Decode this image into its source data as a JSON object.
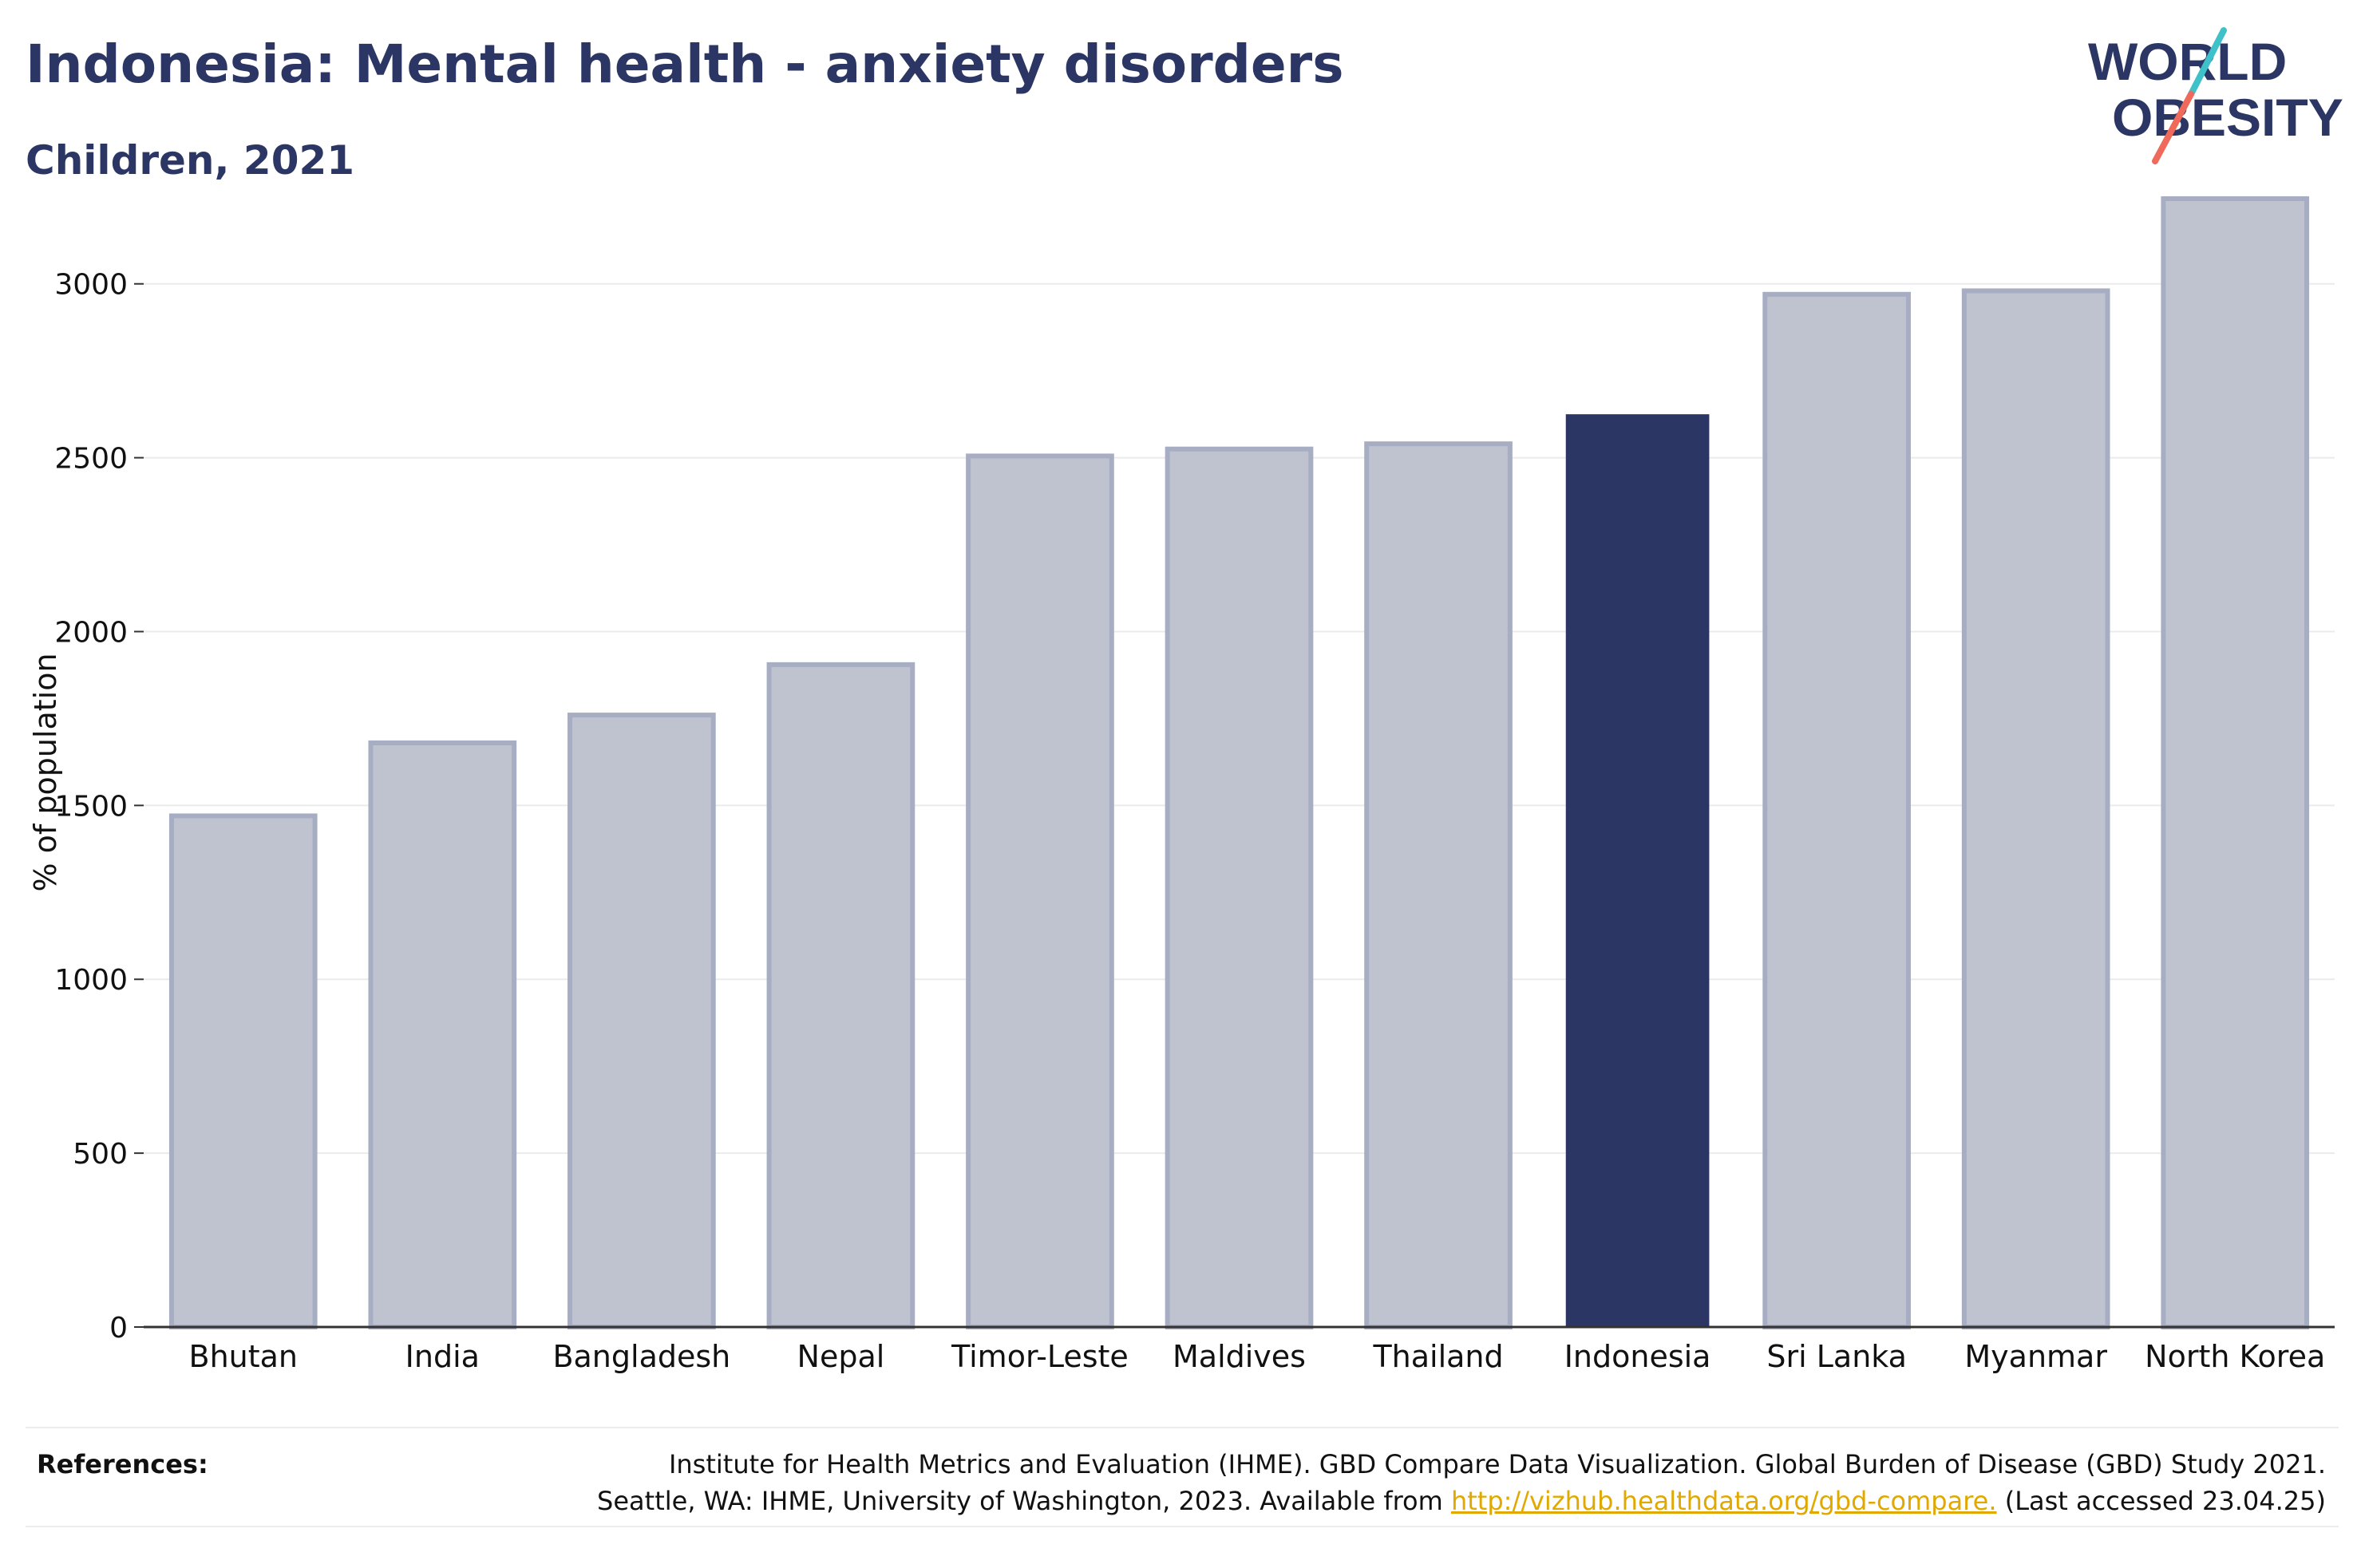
{
  "title": "Indonesia: Mental health - anxiety disorders",
  "subtitle": "Children, 2021",
  "logo": {
    "line1": "WORLD",
    "line2": "OBESITY",
    "slash_colors": [
      "#3fc1c9",
      "#ef6a5a"
    ],
    "text_color": "#2b3664"
  },
  "colors": {
    "highlight": "#2b3664",
    "bar": "#bfc3d0",
    "bar_border": "#a7adc2",
    "title": "#2b3664"
  },
  "chart_data": {
    "type": "bar",
    "categories": [
      "Bhutan",
      "India",
      "Bangladesh",
      "Nepal",
      "Timor-Leste",
      "Maldives",
      "Thailand",
      "Indonesia",
      "Sri Lanka",
      "Myanmar",
      "North Korea"
    ],
    "values": [
      1470,
      1680,
      1760,
      1905,
      2505,
      2525,
      2540,
      2625,
      2970,
      2980,
      3245
    ],
    "highlight": "Indonesia",
    "title": "Indonesia: Mental health - anxiety disorders",
    "subtitle": "Children, 2021",
    "xlabel": "",
    "ylabel": "% of population",
    "ylim": [
      0,
      3300
    ],
    "yticks": [
      0,
      500,
      1000,
      1500,
      2000,
      2500,
      3000
    ],
    "grid": true
  },
  "references": {
    "label": "References:",
    "line1": "Institute for Health Metrics and Evaluation (IHME). GBD Compare Data Visualization. Global Burden of Disease (GBD) Study 2021.",
    "line2_prefix": "Seattle, WA: IHME, University of Washington, 2023. Available from ",
    "link": "http://vizhub.healthdata.org/gbd-compare.",
    "line2_suffix": " (Last accessed 23.04.25)"
  }
}
